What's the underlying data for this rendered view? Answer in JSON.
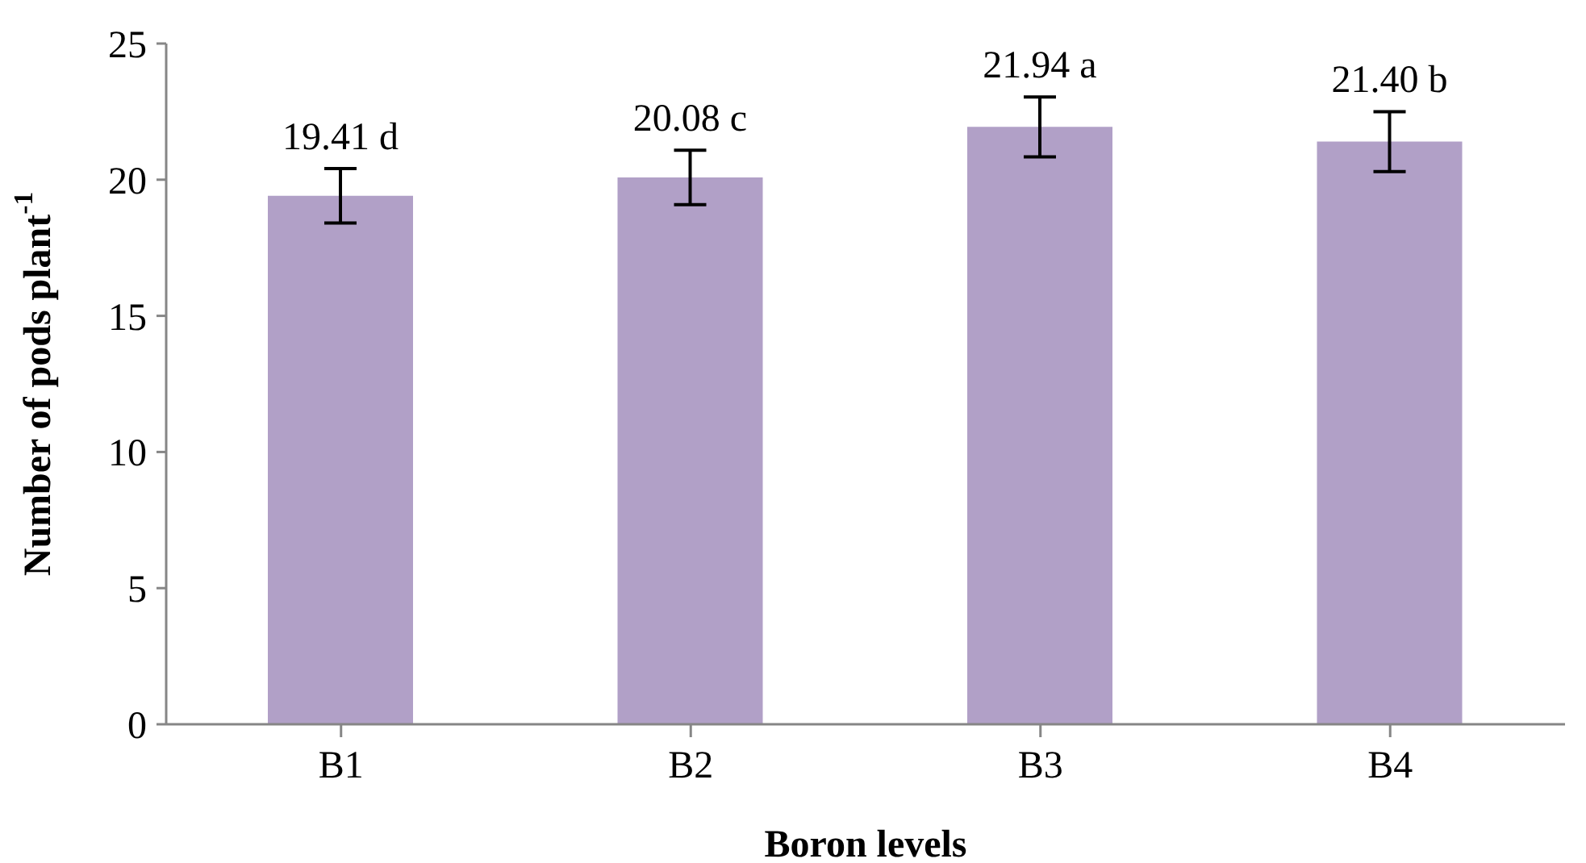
{
  "chart_data": {
    "type": "bar",
    "xlabel": "Boron levels",
    "ylabel": "Number of pods plant$^{-1}$",
    "categories": [
      "B1",
      "B2",
      "B3",
      "B4"
    ],
    "values": [
      19.41,
      20.08,
      21.94,
      21.4
    ],
    "color": "#b1a0c7",
    "errors": [
      1.0,
      1.0,
      1.1,
      1.1
    ],
    "value_labels": [
      "19.41 d",
      "20.08 c",
      "21.94 a",
      "21.40 b"
    ],
    "ylim": [
      0,
      25
    ],
    "yticks": [
      0,
      5,
      10,
      15,
      20,
      25
    ],
    "grid": false,
    "legend": false
  }
}
